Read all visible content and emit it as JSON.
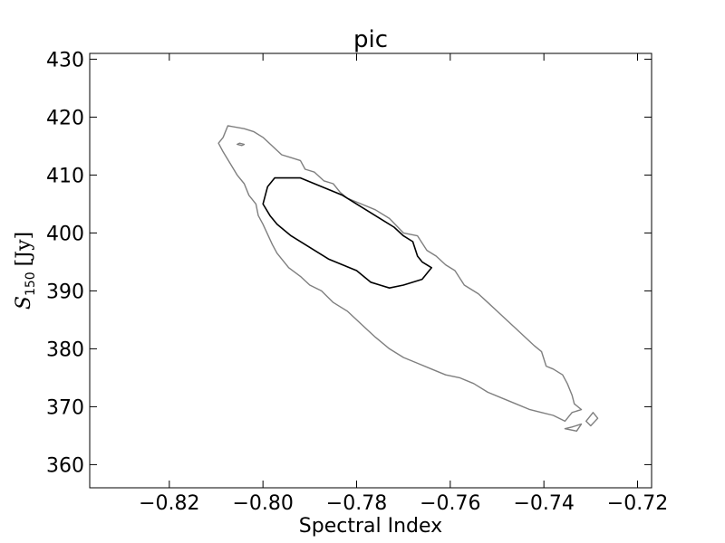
{
  "chart_data": {
    "type": "contour",
    "title": "pic",
    "xlabel": "Spectral Index",
    "ylabel": {
      "symbol": "S",
      "subscript": "150",
      "unit": "[Jy]"
    },
    "xlim": [
      -0.837,
      -0.717
    ],
    "ylim": [
      356,
      431
    ],
    "x_ticks": [
      -0.82,
      -0.8,
      -0.78,
      -0.76,
      -0.74,
      -0.72
    ],
    "x_tick_labels": [
      "−0.82",
      "−0.80",
      "−0.78",
      "−0.76",
      "−0.74",
      "−0.72"
    ],
    "y_ticks": [
      360,
      370,
      380,
      390,
      400,
      410,
      420,
      430
    ],
    "y_tick_labels": [
      "360",
      "370",
      "380",
      "390",
      "400",
      "410",
      "420",
      "430"
    ],
    "grid": false,
    "series": [
      {
        "color": "#7f7f7f",
        "paths": [
          [
            [
              -0.8075,
              418.5
            ],
            [
              -0.804,
              418.0
            ],
            [
              -0.802,
              417.5
            ],
            [
              -0.8,
              416.5
            ],
            [
              -0.798,
              415.0
            ],
            [
              -0.796,
              413.5
            ],
            [
              -0.794,
              413.0
            ],
            [
              -0.792,
              412.5
            ],
            [
              -0.791,
              411.0
            ],
            [
              -0.789,
              410.5
            ],
            [
              -0.787,
              409.0
            ],
            [
              -0.785,
              408.5
            ],
            [
              -0.7835,
              407.0
            ],
            [
              -0.782,
              406.0
            ],
            [
              -0.779,
              405.0
            ],
            [
              -0.776,
              404.0
            ],
            [
              -0.773,
              402.5
            ],
            [
              -0.77,
              400.0
            ],
            [
              -0.767,
              399.5
            ],
            [
              -0.765,
              397.0
            ],
            [
              -0.763,
              396.0
            ],
            [
              -0.761,
              394.5
            ],
            [
              -0.759,
              393.5
            ],
            [
              -0.757,
              391.0
            ],
            [
              -0.754,
              389.5
            ],
            [
              -0.752,
              388.0
            ],
            [
              -0.75,
              386.5
            ],
            [
              -0.748,
              385.0
            ],
            [
              -0.746,
              383.5
            ],
            [
              -0.744,
              382.0
            ],
            [
              -0.742,
              380.5
            ],
            [
              -0.7405,
              379.5
            ],
            [
              -0.7395,
              377.0
            ],
            [
              -0.738,
              376.5
            ],
            [
              -0.736,
              375.5
            ],
            [
              -0.735,
              374.0
            ],
            [
              -0.734,
              372.0
            ],
            [
              -0.7335,
              370.5
            ],
            [
              -0.732,
              369.5
            ],
            [
              -0.734,
              369.0
            ],
            [
              -0.7355,
              367.5
            ],
            [
              -0.738,
              368.5
            ],
            [
              -0.7405,
              369.0
            ],
            [
              -0.743,
              369.5
            ],
            [
              -0.746,
              370.5
            ],
            [
              -0.749,
              371.5
            ],
            [
              -0.752,
              372.5
            ],
            [
              -0.755,
              374.0
            ],
            [
              -0.758,
              375.0
            ],
            [
              -0.761,
              375.5
            ],
            [
              -0.764,
              376.5
            ],
            [
              -0.767,
              377.5
            ],
            [
              -0.77,
              378.5
            ],
            [
              -0.773,
              380.0
            ],
            [
              -0.776,
              382.0
            ],
            [
              -0.778,
              383.5
            ],
            [
              -0.78,
              385.0
            ],
            [
              -0.782,
              386.5
            ],
            [
              -0.785,
              388.0
            ],
            [
              -0.7875,
              390.0
            ],
            [
              -0.79,
              391.0
            ],
            [
              -0.792,
              392.5
            ],
            [
              -0.7945,
              394.0
            ],
            [
              -0.797,
              396.5
            ],
            [
              -0.798,
              398.0
            ],
            [
              -0.8,
              401.5
            ],
            [
              -0.801,
              403.0
            ],
            [
              -0.8015,
              405.0
            ],
            [
              -0.803,
              406.5
            ],
            [
              -0.804,
              408.5
            ],
            [
              -0.8055,
              410.0
            ],
            [
              -0.807,
              412.0
            ],
            [
              -0.8085,
              414.0
            ],
            [
              -0.8095,
              415.5
            ],
            [
              -0.8085,
              416.5
            ],
            [
              -0.8075,
              418.5
            ]
          ],
          [
            [
              -0.805,
              415.5
            ],
            [
              -0.804,
              415.3
            ],
            [
              -0.8045,
              415.1
            ],
            [
              -0.8055,
              415.3
            ],
            [
              -0.805,
              415.5
            ]
          ],
          [
            [
              -0.731,
              367.5
            ],
            [
              -0.7295,
              369.0
            ],
            [
              -0.7285,
              368.0
            ],
            [
              -0.73,
              366.7
            ],
            [
              -0.731,
              367.5
            ]
          ],
          [
            [
              -0.734,
              366.5
            ],
            [
              -0.732,
              367.0
            ],
            [
              -0.733,
              365.8
            ],
            [
              -0.7355,
              366.2
            ],
            [
              -0.734,
              366.5
            ]
          ]
        ]
      },
      {
        "color": "#000000",
        "paths": [
          [
            [
              -0.799,
              408.0
            ],
            [
              -0.7975,
              409.5
            ],
            [
              -0.795,
              409.5
            ],
            [
              -0.792,
              409.5
            ],
            [
              -0.789,
              408.5
            ],
            [
              -0.786,
              407.5
            ],
            [
              -0.783,
              406.5
            ],
            [
              -0.78,
              405.0
            ],
            [
              -0.778,
              404.0
            ],
            [
              -0.775,
              402.5
            ],
            [
              -0.772,
              401.0
            ],
            [
              -0.77,
              399.5
            ],
            [
              -0.768,
              398.5
            ],
            [
              -0.767,
              396.0
            ],
            [
              -0.766,
              395.0
            ],
            [
              -0.764,
              394.0
            ],
            [
              -0.766,
              392.0
            ],
            [
              -0.77,
              391.0
            ],
            [
              -0.773,
              390.5
            ],
            [
              -0.775,
              391.0
            ],
            [
              -0.777,
              391.5
            ],
            [
              -0.78,
              393.5
            ],
            [
              -0.783,
              394.5
            ],
            [
              -0.786,
              395.5
            ],
            [
              -0.788,
              396.5
            ],
            [
              -0.791,
              398.0
            ],
            [
              -0.794,
              399.5
            ],
            [
              -0.797,
              401.5
            ],
            [
              -0.7985,
              403.0
            ],
            [
              -0.8,
              405.0
            ],
            [
              -0.799,
              408.0
            ]
          ]
        ]
      }
    ]
  }
}
